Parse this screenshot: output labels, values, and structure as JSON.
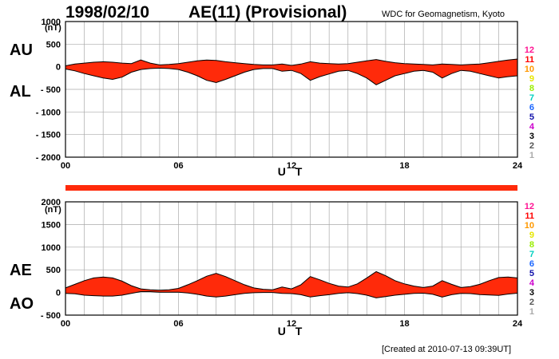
{
  "header": {
    "date": "1998/02/10",
    "index": "AE(11) (Provisional)",
    "source": "WDC for Geomagnetism, Kyoto",
    "created": "[Created at 2010-07-13 09:39UT]"
  },
  "labels": {
    "au": "AU",
    "al": "AL",
    "ae": "AE",
    "ao": "AO"
  },
  "legend": {
    "entries": [
      "12",
      "11",
      "10",
      "9",
      "8",
      "7",
      "6",
      "5",
      "4",
      "3",
      "2",
      "1"
    ],
    "colors": [
      "#ff1493",
      "#ff0000",
      "#ff9900",
      "#e6e600",
      "#99ee00",
      "#00d0c0",
      "#1a66ff",
      "#1010aa",
      "#cc00cc",
      "#000000",
      "#555555",
      "#aaaaaa"
    ]
  },
  "colors": {
    "fill": "#ff2a0a",
    "outline": "#000000",
    "grid": "#aaaaaa"
  },
  "chart_data": [
    {
      "type": "area",
      "panel": "AU/AL",
      "unit": "(nT)",
      "xlabel": "U T",
      "ylim": [
        -2000,
        1000
      ],
      "yticks": [
        {
          "v": 1000,
          "t": "1000"
        },
        {
          "v": 500,
          "t": "500"
        },
        {
          "v": 0,
          "t": "0"
        },
        {
          "v": -500,
          "t": "- 500"
        },
        {
          "v": -1000,
          "t": "- 1000"
        },
        {
          "v": -1500,
          "t": "- 1500"
        },
        {
          "v": -2000,
          "t": "- 2000"
        }
      ],
      "xlim": [
        0,
        24
      ],
      "xticks": [
        {
          "v": 0,
          "t": "00"
        },
        {
          "v": 6,
          "t": "06"
        },
        {
          "v": 12,
          "t": "12"
        },
        {
          "v": 18,
          "t": "18"
        },
        {
          "v": 24,
          "t": "24"
        }
      ],
      "grid": true,
      "series": [
        {
          "name": "AU",
          "x": [
            0,
            0.5,
            1,
            1.5,
            2,
            2.5,
            3,
            3.5,
            4,
            4.5,
            5,
            5.5,
            6,
            6.5,
            7,
            7.5,
            8,
            8.5,
            9,
            9.5,
            10,
            10.5,
            11,
            11.5,
            12,
            12.5,
            13,
            13.5,
            14,
            14.5,
            15,
            15.5,
            16,
            16.5,
            17,
            17.5,
            18,
            18.5,
            19,
            19.5,
            20,
            20.5,
            21,
            21.5,
            22,
            22.5,
            23,
            23.5,
            24
          ],
          "values": [
            20,
            60,
            80,
            100,
            110,
            100,
            80,
            70,
            150,
            80,
            40,
            50,
            70,
            100,
            130,
            150,
            140,
            110,
            90,
            70,
            50,
            40,
            40,
            60,
            30,
            60,
            110,
            80,
            70,
            60,
            70,
            100,
            130,
            160,
            120,
            90,
            70,
            60,
            50,
            40,
            60,
            50,
            40,
            50,
            60,
            90,
            120,
            150,
            170
          ]
        },
        {
          "name": "AL",
          "x": [
            0,
            0.5,
            1,
            1.5,
            2,
            2.5,
            3,
            3.5,
            4,
            4.5,
            5,
            5.5,
            6,
            6.5,
            7,
            7.5,
            8,
            8.5,
            9,
            9.5,
            10,
            10.5,
            11,
            11.5,
            12,
            12.5,
            13,
            13.5,
            14,
            14.5,
            15,
            15.5,
            16,
            16.5,
            17,
            17.5,
            18,
            18.5,
            19,
            19.5,
            20,
            20.5,
            21,
            21.5,
            22,
            22.5,
            23,
            23.5,
            24
          ],
          "values": [
            -50,
            -90,
            -150,
            -200,
            -250,
            -280,
            -230,
            -120,
            -60,
            -40,
            -30,
            -40,
            -60,
            -120,
            -200,
            -300,
            -350,
            -280,
            -200,
            -120,
            -60,
            -40,
            -40,
            -100,
            -80,
            -150,
            -300,
            -220,
            -160,
            -100,
            -80,
            -150,
            -250,
            -400,
            -300,
            -200,
            -150,
            -100,
            -80,
            -120,
            -250,
            -150,
            -80,
            -100,
            -150,
            -200,
            -250,
            -220,
            -200
          ]
        }
      ]
    },
    {
      "type": "area",
      "panel": "AE/AO",
      "unit": "(nT)",
      "xlabel": "U T",
      "ylim": [
        -500,
        2000
      ],
      "yticks": [
        {
          "v": 2000,
          "t": "2000"
        },
        {
          "v": 1500,
          "t": "1500"
        },
        {
          "v": 1000,
          "t": "1000"
        },
        {
          "v": 500,
          "t": "500"
        },
        {
          "v": 0,
          "t": "0"
        },
        {
          "v": -500,
          "t": "- 500"
        }
      ],
      "xlim": [
        0,
        24
      ],
      "xticks": [
        {
          "v": 0,
          "t": "00"
        },
        {
          "v": 6,
          "t": "06"
        },
        {
          "v": 12,
          "t": "12"
        },
        {
          "v": 18,
          "t": "18"
        },
        {
          "v": 24,
          "t": "24"
        }
      ],
      "grid": true,
      "series": [
        {
          "name": "AE",
          "x": [
            0,
            0.5,
            1,
            1.5,
            2,
            2.5,
            3,
            3.5,
            4,
            4.5,
            5,
            5.5,
            6,
            6.5,
            7,
            7.5,
            8,
            8.5,
            9,
            9.5,
            10,
            10.5,
            11,
            11.5,
            12,
            12.5,
            13,
            13.5,
            14,
            14.5,
            15,
            15.5,
            16,
            16.5,
            17,
            17.5,
            18,
            18.5,
            19,
            19.5,
            20,
            20.5,
            21,
            21.5,
            22,
            22.5,
            23,
            23.5,
            24
          ],
          "values": [
            100,
            180,
            260,
            320,
            340,
            320,
            250,
            150,
            80,
            60,
            50,
            60,
            90,
            170,
            260,
            360,
            420,
            350,
            260,
            170,
            100,
            70,
            60,
            120,
            80,
            170,
            350,
            280,
            200,
            140,
            120,
            190,
            320,
            460,
            370,
            260,
            190,
            140,
            110,
            140,
            260,
            180,
            110,
            130,
            180,
            260,
            330,
            340,
            320
          ]
        },
        {
          "name": "AO",
          "x": [
            0,
            0.5,
            1,
            1.5,
            2,
            2.5,
            3,
            3.5,
            4,
            4.5,
            5,
            5.5,
            6,
            6.5,
            7,
            7.5,
            8,
            8.5,
            9,
            9.5,
            10,
            10.5,
            11,
            11.5,
            12,
            12.5,
            13,
            13.5,
            14,
            14.5,
            15,
            15.5,
            16,
            16.5,
            17,
            17.5,
            18,
            18.5,
            19,
            19.5,
            20,
            20.5,
            21,
            21.5,
            22,
            22.5,
            23,
            23.5,
            24
          ],
          "values": [
            -20,
            -30,
            -60,
            -70,
            -80,
            -80,
            -60,
            -20,
            20,
            20,
            5,
            5,
            5,
            -10,
            -40,
            -80,
            -100,
            -80,
            -50,
            -20,
            -5,
            0,
            0,
            -20,
            -25,
            -50,
            -100,
            -70,
            -50,
            -20,
            -5,
            -25,
            -60,
            -120,
            -90,
            -60,
            -40,
            -20,
            -15,
            -40,
            -100,
            -50,
            -20,
            -25,
            -45,
            -55,
            -65,
            -35,
            -15
          ]
        }
      ]
    }
  ]
}
